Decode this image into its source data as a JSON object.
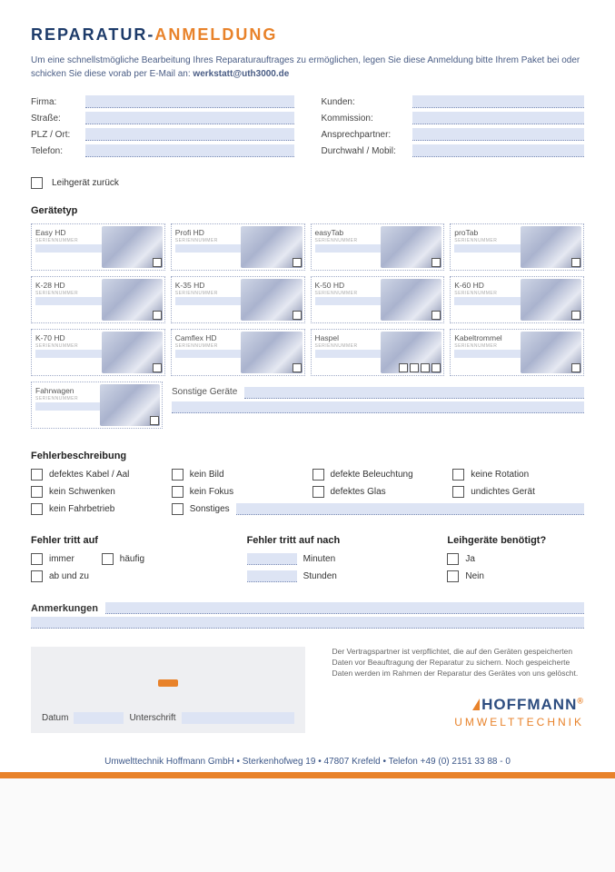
{
  "title": {
    "part1": "REPARATUR-",
    "part2": "ANMELDUNG"
  },
  "intro": {
    "text": "Um eine schnellstmögliche Bearbeitung Ihres Reparaturauftrages zu ermöglichen, legen Sie diese Anmeldung bitte Ihrem Paket bei oder schicken Sie diese vorab per E-Mail an: ",
    "email": "werkstatt@uth3000.de"
  },
  "info_left": {
    "firma": "Firma:",
    "strasse": "Straße:",
    "plz": "PLZ / Ort:",
    "telefon": "Telefon:"
  },
  "info_right": {
    "kunden": "Kunden:",
    "kommission": "Kommission:",
    "ansprech": "Ansprechpartner:",
    "durchwahl": "Durchwahl / Mobil:"
  },
  "loan_return": "Leihgerät zurück",
  "devicetype_title": "Gerätetyp",
  "serial_label": "SERIENNUMMER",
  "devices": [
    {
      "name": "Easy HD",
      "checks": 1
    },
    {
      "name": "Profi HD",
      "checks": 1
    },
    {
      "name": "easyTab",
      "checks": 1
    },
    {
      "name": "proTab",
      "checks": 1
    },
    {
      "name": "K-28 HD",
      "checks": 1
    },
    {
      "name": "K-35 HD",
      "checks": 1
    },
    {
      "name": "K-50 HD",
      "checks": 1
    },
    {
      "name": "K-60 HD",
      "checks": 1
    },
    {
      "name": "K-70 HD",
      "checks": 1
    },
    {
      "name": "Camflex HD",
      "checks": 1
    },
    {
      "name": "Haspel",
      "checks": 4
    },
    {
      "name": "Kabeltrommel",
      "checks": 1
    }
  ],
  "device_fahrwagen": "Fahrwagen",
  "other_devices_label": "Sonstige Geräte",
  "fault_title": "Fehlerbeschreibung",
  "faults": {
    "kabel": "defektes Kabel / Aal",
    "bild": "kein Bild",
    "beleuchtung": "defekte Beleuchtung",
    "rotation": "keine Rotation",
    "schwenken": "kein Schwenken",
    "fokus": "kein Fokus",
    "glas": "defektes Glas",
    "undicht": "undichtes Gerät",
    "fahrbetrieb": "kein Fahrbetrieb",
    "sonstiges": "Sonstiges"
  },
  "occurs": {
    "title": "Fehler tritt auf",
    "immer": "immer",
    "haeufig": "häufig",
    "abundzu": "ab und zu"
  },
  "after": {
    "title": "Fehler tritt auf nach",
    "min": "Minuten",
    "std": "Stunden"
  },
  "loan_need": {
    "title": "Leihgeräte benötigt?",
    "ja": "Ja",
    "nein": "Nein"
  },
  "notes_title": "Anmerkungen",
  "legal": "Der Vertragspartner ist verpflichtet, die auf den Geräten gespeicherten Daten vor Beauftragung der Reparatur zu sichern. Noch gespeicherte Daten werden im Rahmen der Reparatur des Gerätes von uns gelöscht.",
  "sign": {
    "datum": "Datum",
    "unterschrift": "Unterschrift"
  },
  "logo": {
    "main": "HOFFMANN",
    "sub": "UMWELTTECHNIK",
    "reg": "®"
  },
  "footer": "Umwelttechnik Hoffmann GmbH • Sterkenhofweg 19 • 47807 Krefeld • Telefon +49 (0) 2151 33 88 - 0",
  "colors": {
    "fill": "#dde4f4",
    "accent": "#e8822a",
    "brand_blue": "#2d4d80"
  }
}
